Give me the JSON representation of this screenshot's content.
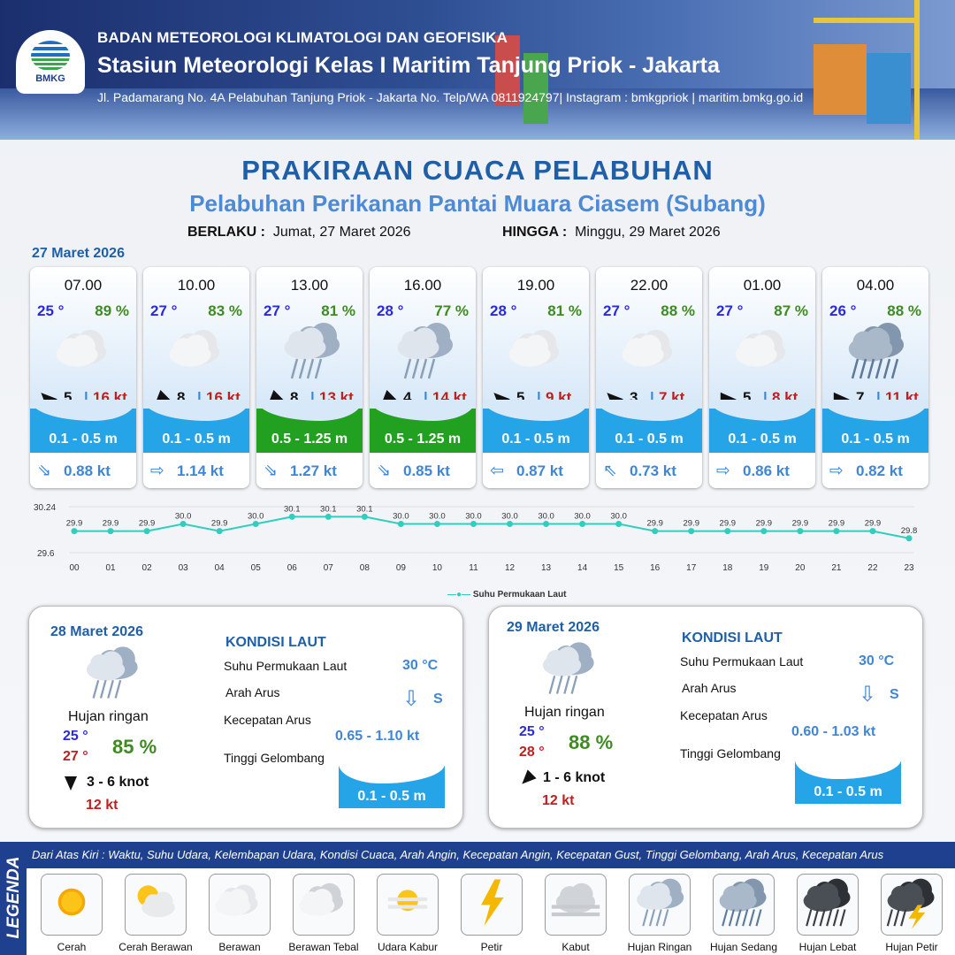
{
  "header": {
    "org": "BADAN METEOROLOGI KLIMATOLOGI DAN GEOFISIKA",
    "station": "Stasiun Meteorologi Kelas I Maritim Tanjung Priok - Jakarta",
    "address": "Jl. Padamarang No. 4A Pelabuhan Tanjung Priok - Jakarta No. Telp/WA 0811924797| Instagram : bmkgpriok | maritim.bmkg.go.id",
    "logo_text": "BMKG"
  },
  "title": "PRAKIRAAN CUACA PELABUHAN",
  "subtitle": "Pelabuhan Perikanan Pantai Muara Ciasem (Subang)",
  "valid": {
    "from_label": "BERLAKU :",
    "from": "Jumat, 27 Maret 2026",
    "to_label": "HINGGA :",
    "to": "Minggu, 29 Maret 2026"
  },
  "day0_date": "27 Maret 2026",
  "cards": [
    {
      "time": "07.00",
      "temp": "25 °",
      "rh": "89 %",
      "wx": "cloudy",
      "wind_speed": "5",
      "gust": "16 kt",
      "wind_rot": -45,
      "wave": "0.1 - 0.5 m",
      "wave_color": "blue",
      "cur_icon": "arrow-down-right",
      "cur": "0.88 kt"
    },
    {
      "time": "10.00",
      "temp": "27 °",
      "rh": "83 %",
      "wx": "cloudy",
      "wind_speed": "8",
      "gust": "16 kt",
      "wind_rot": -135,
      "wave": "0.1 - 0.5 m",
      "wave_color": "blue",
      "cur_icon": "arrow-right",
      "cur": "1.14 kt"
    },
    {
      "time": "13.00",
      "temp": "27 °",
      "rh": "81 %",
      "wx": "light-rain",
      "wind_speed": "8",
      "gust": "13 kt",
      "wind_rot": -135,
      "wave": "0.5 - 1.25 m",
      "wave_color": "green",
      "cur_icon": "arrow-down-right",
      "cur": "1.27 kt"
    },
    {
      "time": "16.00",
      "temp": "28 °",
      "rh": "77 %",
      "wx": "light-rain",
      "wind_speed": "4",
      "gust": "14 kt",
      "wind_rot": -135,
      "wave": "0.5 - 1.25 m",
      "wave_color": "green",
      "cur_icon": "arrow-down-right",
      "cur": "0.85 kt"
    },
    {
      "time": "19.00",
      "temp": "28 °",
      "rh": "81 %",
      "wx": "cloudy",
      "wind_speed": "5",
      "gust": "9 kt",
      "wind_rot": -45,
      "wave": "0.1 - 0.5 m",
      "wave_color": "blue",
      "cur_icon": "arrow-left",
      "cur": "0.87 kt"
    },
    {
      "time": "22.00",
      "temp": "27 °",
      "rh": "88 %",
      "wx": "cloudy",
      "wind_speed": "3",
      "gust": "7 kt",
      "wind_rot": -45,
      "wave": "0.1 - 0.5 m",
      "wave_color": "blue",
      "cur_icon": "arrow-up-left",
      "cur": "0.73 kt"
    },
    {
      "time": "01.00",
      "temp": "27 °",
      "rh": "87 %",
      "wx": "cloudy",
      "wind_speed": "5",
      "gust": "8 kt",
      "wind_rot": 90,
      "wave": "0.1 - 0.5 m",
      "wave_color": "blue",
      "cur_icon": "arrow-right",
      "cur": "0.86 kt"
    },
    {
      "time": "04.00",
      "temp": "26 °",
      "rh": "88 %",
      "wx": "moderate-rain",
      "wind_speed": "7",
      "gust": "11 kt",
      "wind_rot": 90,
      "wave": "0.1 - 0.5 m",
      "wave_color": "blue",
      "cur_icon": "arrow-right",
      "cur": "0.82 kt"
    }
  ],
  "chart_data": {
    "type": "line",
    "x": [
      "00",
      "01",
      "02",
      "03",
      "04",
      "05",
      "06",
      "07",
      "08",
      "09",
      "10",
      "11",
      "12",
      "13",
      "14",
      "15",
      "16",
      "17",
      "18",
      "19",
      "20",
      "21",
      "22",
      "23"
    ],
    "series": [
      {
        "name": "Suhu Permukaan Laut",
        "values": [
          29.9,
          29.9,
          29.9,
          30.0,
          29.9,
          30.0,
          30.1,
          30.1,
          30.1,
          30.0,
          30.0,
          30.0,
          30.0,
          30.0,
          30.0,
          30.0,
          29.9,
          29.9,
          29.9,
          29.9,
          29.9,
          29.9,
          29.9,
          29.8
        ]
      }
    ],
    "yticks": [
      "30.24",
      "29.6"
    ],
    "ylim": [
      29.6,
      30.24
    ],
    "color": "#2fcfbf"
  },
  "days": [
    {
      "date": "28 Maret 2026",
      "wx": "light-rain",
      "cond": "Hujan ringan",
      "tmin": "25 °",
      "tmax": "27 °",
      "rh": "85 %",
      "wind": "3  - 6 knot",
      "gust": "12 kt",
      "wind_rot": 180,
      "sea_title": "KONDISI LAUT",
      "sst_label": "Suhu Permukaan Laut",
      "sst": "30 °C",
      "dir_label": "Arah Arus",
      "dir": "S",
      "spd_label": "Kecepatan Arus",
      "spd": "0.65  - 1.10 kt",
      "wave_label": "Tinggi Gelombang",
      "wave": "0.1 - 0.5 m"
    },
    {
      "date": "29 Maret 2026",
      "wx": "light-rain",
      "cond": "Hujan ringan",
      "tmin": "25 °",
      "tmax": "28 °",
      "rh": "88 %",
      "wind": "1  - 6 knot",
      "gust": "12 kt",
      "wind_rot": -135,
      "sea_title": "KONDISI LAUT",
      "sst_label": "Suhu Permukaan Laut",
      "sst": "30 °C",
      "dir_label": "Arah Arus",
      "dir": "S",
      "spd_label": "Kecepatan Arus",
      "spd": "0.60  - 1.03 kt",
      "wave_label": "Tinggi Gelombang",
      "wave": "0.1 - 0.5 m"
    }
  ],
  "legend": {
    "side": "LEGENDA",
    "band": "Dari Atas Kiri : Waktu, Suhu Udara, Kelembapan Udara, Kondisi Cuaca, Arah Angin, Kecepatan Angin, Kecepatan Gust, Tinggi Gelombang, Arah Arus, Kecepatan Arus",
    "items": [
      {
        "name": "Cerah",
        "icon": "sun"
      },
      {
        "name": "Cerah Berawan",
        "icon": "sun-cloud"
      },
      {
        "name": "Berawan",
        "icon": "cloud"
      },
      {
        "name": "Berawan Tebal",
        "icon": "cloud-thick"
      },
      {
        "name": "Udara Kabur",
        "icon": "haze"
      },
      {
        "name": "Petir",
        "icon": "lightning"
      },
      {
        "name": "Kabut",
        "icon": "fog"
      },
      {
        "name": "Hujan Ringan",
        "icon": "light-rain"
      },
      {
        "name": "Hujan Sedang",
        "icon": "moderate-rain"
      },
      {
        "name": "Hujan Lebat",
        "icon": "heavy-rain"
      },
      {
        "name": "Hujan Petir",
        "icon": "thunderstorm"
      }
    ]
  }
}
